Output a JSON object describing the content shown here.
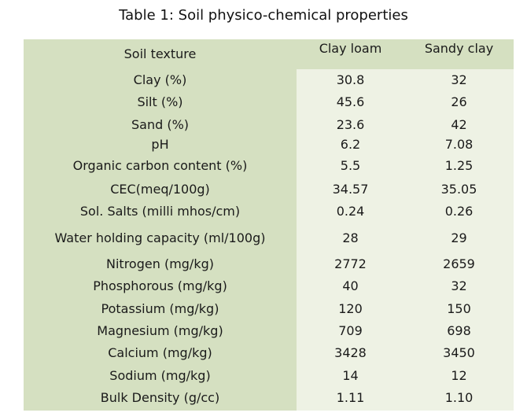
{
  "title": "Table 1: Soil physico-chemical properties",
  "header": {
    "label": "Soil texture",
    "col1": "Clay loam",
    "col2": "Sandy clay"
  },
  "rows": [
    {
      "label": "Clay (%)",
      "v1": "30.8",
      "v2": "32"
    },
    {
      "label": "Silt (%)",
      "v1": "45.6",
      "v2": "26"
    },
    {
      "label": "Sand (%)",
      "v1": "23.6",
      "v2": "42"
    },
    {
      "label": "pH",
      "v1": "6.2",
      "v2": "7.08"
    },
    {
      "label": "Organic carbon content (%)",
      "v1": "5.5",
      "v2": "1.25"
    },
    {
      "label": "CEC(meq/100g)",
      "v1": "34.57",
      "v2": "35.05"
    },
    {
      "label": "Sol. Salts (milli mhos/cm)",
      "v1": "0.24",
      "v2": "0.26"
    },
    {
      "label": "Water holding capacity (ml/100g)",
      "v1": "28",
      "v2": "29"
    },
    {
      "label": "Nitrogen (mg/kg)",
      "v1": "2772",
      "v2": "2659"
    },
    {
      "label": "Phosphorous (mg/kg)",
      "v1": "40",
      "v2": "32"
    },
    {
      "label": "Potassium (mg/kg)",
      "v1": "120",
      "v2": "150"
    },
    {
      "label": "Magnesium (mg/kg)",
      "v1": "709",
      "v2": "698"
    },
    {
      "label": "Calcium (mg/kg)",
      "v1": "3428",
      "v2": "3450"
    },
    {
      "label": "Sodium (mg/kg)",
      "v1": "14",
      "v2": "12"
    },
    {
      "label": "Bulk Density (g/cc)",
      "v1": "1.11",
      "v2": "1.10"
    }
  ],
  "colors": {
    "label_bg": "#d5e0c1",
    "value_bg": "#eef2e4"
  }
}
